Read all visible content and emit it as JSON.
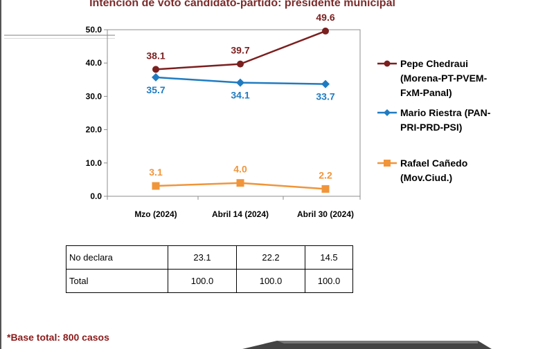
{
  "title": "Intención de voto candidato-partido: presidente municipal",
  "chart_data": {
    "type": "line",
    "title": "Intención de voto candidato-partido: presidente municipal",
    "categories": [
      "Mzo (2024)",
      "Abril 14 (2024)",
      "Abril 30 (2024)"
    ],
    "ylim": [
      0,
      50
    ],
    "yticks": [
      "0.0",
      "10.0",
      "20.0",
      "30.0",
      "40.0",
      "50.0"
    ],
    "grid": false,
    "legend_position": "right",
    "series": [
      {
        "name": "Pepe Chedraui (Morena-PT-PVEM-FxM-Panal)",
        "name_lines": [
          "Pepe Chedraui",
          "(Morena-PT-PVEM-",
          "FxM-Panal)"
        ],
        "values": [
          38.1,
          39.7,
          49.6
        ],
        "labels": [
          "38.1",
          "39.7",
          "49.6"
        ],
        "color": "#7b1f1f",
        "marker": "circle"
      },
      {
        "name": "Mario Riestra (PAN-PRI-PRD-PSI)",
        "name_lines": [
          "Mario Riestra (PAN-",
          "PRI-PRD-PSI)"
        ],
        "values": [
          35.7,
          34.1,
          33.7
        ],
        "labels": [
          "35.7",
          "34.1",
          "33.7"
        ],
        "color": "#1f7bc1",
        "marker": "diamond"
      },
      {
        "name": "Rafael Cañedo (Mov.Ciud.)",
        "name_lines": [
          "Rafael Cañedo",
          "(Mov.Ciud.)"
        ],
        "values": [
          3.1,
          4.0,
          2.2
        ],
        "labels": [
          "3.1",
          "4.0",
          "2.2"
        ],
        "color": "#f0953a",
        "marker": "square"
      }
    ]
  },
  "table": {
    "rows": [
      {
        "label": "No declara",
        "values": [
          "23.1",
          "22.2",
          "14.5"
        ]
      },
      {
        "label": "Total",
        "values": [
          "100.0",
          "100.0",
          "100.0"
        ]
      }
    ]
  },
  "footnote": "*Base total: 800 casos"
}
